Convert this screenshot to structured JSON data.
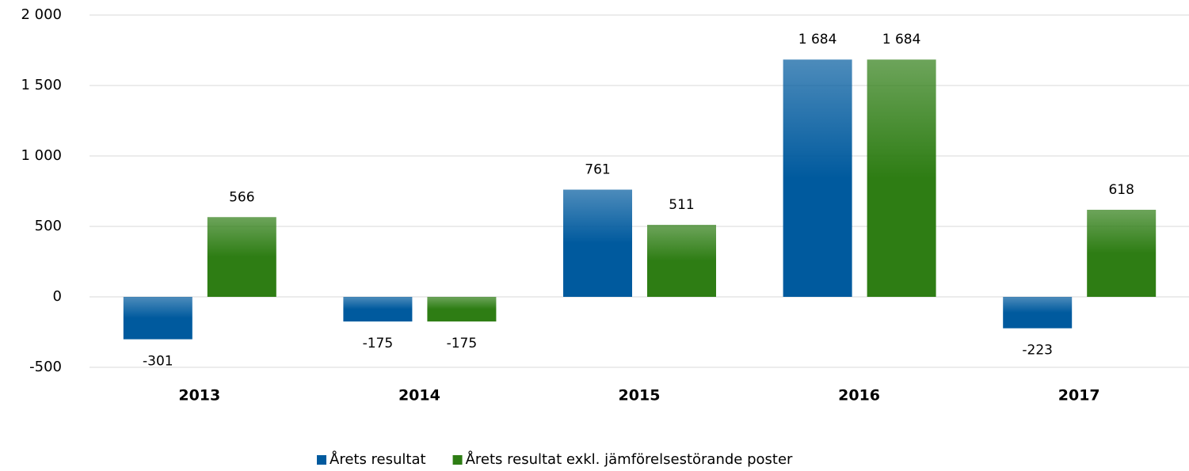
{
  "chart_data": {
    "type": "bar",
    "categories": [
      "2013",
      "2014",
      "2015",
      "2016",
      "2017"
    ],
    "series": [
      {
        "name": "Årets resultat",
        "color": "#005a9e",
        "values": [
          -301,
          -175,
          761,
          1684,
          -223
        ],
        "value_labels": [
          "-301",
          "-175",
          "761",
          "1 684",
          "-223"
        ]
      },
      {
        "name": "Årets resultat exkl. jämförelsestörande poster",
        "color": "#2e7d14",
        "values": [
          566,
          -175,
          511,
          1684,
          618
        ],
        "value_labels": [
          "566",
          "-175",
          "511",
          "1 684",
          "618"
        ]
      }
    ],
    "ylim": [
      -500,
      2000
    ],
    "yticks": [
      -500,
      0,
      {
        "value": 500,
        "label": "500"
      },
      {
        "value": 1000,
        "label": "1 000"
      },
      {
        "value": 1500,
        "label": "1 500"
      },
      {
        "value": 2000,
        "label": "2 000"
      }
    ],
    "grid": true,
    "legend": "bottom"
  }
}
